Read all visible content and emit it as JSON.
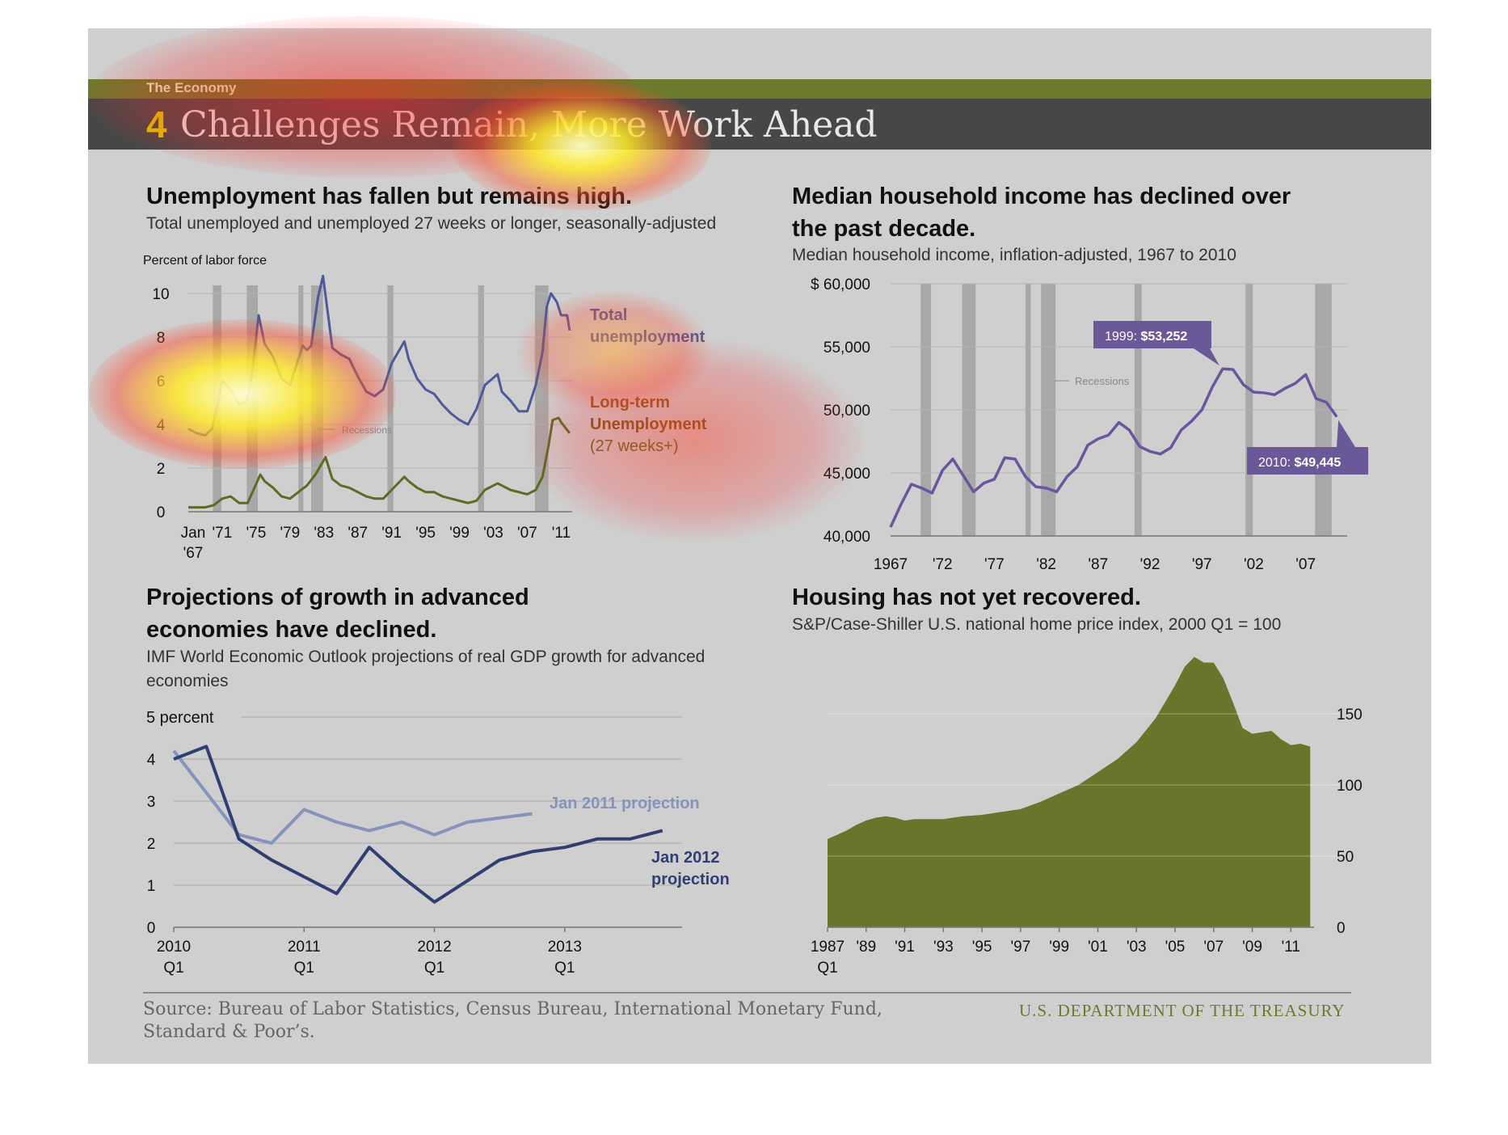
{
  "section_label": "The Economy",
  "title": {
    "number": "4",
    "text": "Challenges Remain, More Work Ahead"
  },
  "panels": {
    "unemployment": {
      "heading": "Unemployment has fallen but remains high.",
      "subtitle": "Total unemployed and unemployed 27 weeks or longer, seasonally-adjusted",
      "ylabel": "Percent of labor force",
      "recessions_label": "Recessions",
      "legend": {
        "total_line1": "Total",
        "total_line2": "unemployment",
        "lt_line1": "Long-term",
        "lt_line2": "Unemployment",
        "lt_line3": "(27 weeks+)"
      }
    },
    "income": {
      "heading_line1": "Median household income has declined over",
      "heading_line2": "the past decade.",
      "subtitle": "Median household income, inflation-adjusted, 1967 to 2010",
      "recessions_label": "Recessions",
      "callout_1999_prefix": "1999: ",
      "callout_1999_value": "$53,252",
      "callout_2010_prefix": "2010: ",
      "callout_2010_value": "$49,445"
    },
    "growth": {
      "heading_line1": "Projections of growth in advanced",
      "heading_line2": "economies have declined.",
      "subtitle_line1": "IMF World Economic Outlook  projections of real GDP growth for advanced",
      "subtitle_line2": "economies",
      "unit_label": "5 percent",
      "legend_2011": "Jan 2011 projection",
      "legend_2012_line1": "Jan 2012",
      "legend_2012_line2": "projection"
    },
    "housing": {
      "heading": "Housing has not yet recovered.",
      "subtitle": "S&P/Case-Shiller U.S. national home price index, 2000 Q1 = 100"
    }
  },
  "footer": {
    "source_line1": "Source: Bureau of Labor Statistics, Census Bureau, International Monetary Fund,",
    "source_line2": "Standard & Poor’s.",
    "agency": "U.S. DEPARTMENT OF THE TREASURY"
  },
  "colors": {
    "total_unemployment": "#4a5a9a",
    "longterm_unemployment": "#5f6b22",
    "income_line": "#6b559e",
    "callout_bg": "#6a5898",
    "jan2011": "#8494bc",
    "jan2012": "#2f3f72",
    "housing_fill": "#67762b",
    "recession_band": "#a8a8a8",
    "title_bar": "#474747",
    "top_bar": "#6b7a2c",
    "title_number": "#e0c700"
  },
  "chart_data": [
    {
      "type": "line",
      "id": "unemployment",
      "title": "Unemployment has fallen but remains high.",
      "ylabel": "Percent of labor force",
      "ylim": [
        0,
        10
      ],
      "yticks": [
        0,
        2,
        4,
        6,
        8,
        10
      ],
      "xlim": [
        1967,
        2012.3
      ],
      "xtick_labels": [
        {
          "x": 1967,
          "line1": "Jan",
          "line2": "'67"
        },
        {
          "x": 1971,
          "line1": "'71"
        },
        {
          "x": 1975,
          "line1": "'75"
        },
        {
          "x": 1979,
          "line1": "'79"
        },
        {
          "x": 1983,
          "line1": "'83"
        },
        {
          "x": 1987,
          "line1": "'87"
        },
        {
          "x": 1991,
          "line1": "'91"
        },
        {
          "x": 1995,
          "line1": "'95"
        },
        {
          "x": 1999,
          "line1": "'99"
        },
        {
          "x": 2003,
          "line1": "'03"
        },
        {
          "x": 2007,
          "line1": "'07"
        },
        {
          "x": 2011,
          "line1": "'11"
        }
      ],
      "recessions": [
        [
          1969.9,
          1970.9
        ],
        [
          1973.9,
          1975.2
        ],
        [
          1980.0,
          1980.5
        ],
        [
          1981.5,
          1982.9
        ],
        [
          1990.5,
          1991.2
        ],
        [
          2001.2,
          2001.9
        ],
        [
          2007.9,
          2009.5
        ]
      ],
      "series": [
        {
          "name": "Total unemployment",
          "x": [
            1967,
            1968,
            1969,
            1969.8,
            1970.5,
            1971,
            1972,
            1973,
            1973.9,
            1974.5,
            1975.3,
            1976,
            1977,
            1978,
            1979,
            1980,
            1980.5,
            1981,
            1981.5,
            1982.3,
            1982.9,
            1983.5,
            1984,
            1985,
            1986,
            1987,
            1988,
            1989,
            1990,
            1991,
            1992.5,
            1993,
            1994,
            1995,
            1996,
            1997,
            1998,
            1999,
            2000,
            2001,
            2002,
            2003.5,
            2004,
            2005,
            2006,
            2007,
            2008,
            2008.8,
            2009.3,
            2009.8,
            2010.5,
            2011,
            2011.7,
            2012
          ],
          "y": [
            3.8,
            3.6,
            3.5,
            3.8,
            5.0,
            6.0,
            5.6,
            4.9,
            5.1,
            6.2,
            9.0,
            7.7,
            7.1,
            6.1,
            5.8,
            7.0,
            7.6,
            7.4,
            7.6,
            9.8,
            10.8,
            9.0,
            7.5,
            7.2,
            7.0,
            6.2,
            5.5,
            5.3,
            5.6,
            6.8,
            7.8,
            7.0,
            6.1,
            5.6,
            5.4,
            4.9,
            4.5,
            4.2,
            4.0,
            4.7,
            5.8,
            6.3,
            5.5,
            5.1,
            4.6,
            4.6,
            5.8,
            7.3,
            9.4,
            10.0,
            9.6,
            9.0,
            9.0,
            8.3
          ]
        },
        {
          "name": "Long-term Unemployment (27 weeks+)",
          "x": [
            1967,
            1968,
            1969,
            1970,
            1971,
            1972,
            1973,
            1974,
            1975.5,
            1976,
            1977,
            1978,
            1979,
            1980,
            1981,
            1982,
            1983.2,
            1984,
            1985,
            1986,
            1987,
            1988,
            1989,
            1990,
            1991,
            1992.5,
            1993,
            1994,
            1995,
            1996,
            1997,
            1998,
            1999,
            2000,
            2001,
            2002,
            2003.5,
            2004,
            2005,
            2006,
            2007,
            2008,
            2008.8,
            2009.5,
            2010,
            2010.7,
            2011,
            2012
          ],
          "y": [
            0.2,
            0.2,
            0.2,
            0.3,
            0.6,
            0.7,
            0.4,
            0.4,
            1.7,
            1.4,
            1.1,
            0.7,
            0.6,
            0.9,
            1.2,
            1.7,
            2.5,
            1.5,
            1.2,
            1.1,
            0.9,
            0.7,
            0.6,
            0.6,
            1.0,
            1.6,
            1.4,
            1.1,
            0.9,
            0.9,
            0.7,
            0.6,
            0.5,
            0.4,
            0.5,
            1.0,
            1.3,
            1.2,
            1.0,
            0.9,
            0.8,
            1.0,
            1.6,
            3.0,
            4.2,
            4.3,
            4.1,
            3.6
          ]
        }
      ]
    },
    {
      "type": "line",
      "id": "income",
      "title": "Median household income has declined over the past decade.",
      "ylim": [
        40000,
        60000
      ],
      "yticks": [
        {
          "v": 40000,
          "label": "40,000"
        },
        {
          "v": 45000,
          "label": "45,000"
        },
        {
          "v": 50000,
          "label": "50,000"
        },
        {
          "v": 55000,
          "label": "55,000"
        },
        {
          "v": 60000,
          "label": "$ 60,000"
        }
      ],
      "xlim": [
        1967,
        2011
      ],
      "xticks": [
        {
          "v": 1967,
          "label": "1967"
        },
        {
          "v": 1972,
          "label": "'72"
        },
        {
          "v": 1977,
          "label": "'77"
        },
        {
          "v": 1982,
          "label": "'82"
        },
        {
          "v": 1987,
          "label": "'87"
        },
        {
          "v": 1992,
          "label": "'92"
        },
        {
          "v": 1997,
          "label": "'97"
        },
        {
          "v": 2002,
          "label": "'02"
        },
        {
          "v": 2007,
          "label": "'07"
        }
      ],
      "recessions": [
        [
          1969.9,
          1970.9
        ],
        [
          1973.9,
          1975.2
        ],
        [
          1980.0,
          1980.5
        ],
        [
          1981.5,
          1982.9
        ],
        [
          1990.5,
          1991.2
        ],
        [
          2001.2,
          2001.9
        ],
        [
          2007.9,
          2009.5
        ]
      ],
      "series": [
        {
          "name": "Median household income",
          "x": [
            1967,
            1968,
            1969,
            1970,
            1971,
            1972,
            1973,
            1974,
            1975,
            1976,
            1977,
            1978,
            1979,
            1980,
            1981,
            1982,
            1983,
            1984,
            1985,
            1986,
            1987,
            1988,
            1989,
            1990,
            1991,
            1992,
            1993,
            1994,
            1995,
            1996,
            1997,
            1998,
            1999,
            2000,
            2001,
            2002,
            2003,
            2004,
            2005,
            2006,
            2007,
            2008,
            2009,
            2010
          ],
          "y": [
            40700,
            42500,
            44100,
            43800,
            43400,
            45200,
            46100,
            44800,
            43500,
            44200,
            44500,
            46200,
            46100,
            44700,
            43900,
            43800,
            43500,
            44700,
            45500,
            47200,
            47700,
            48000,
            49000,
            48400,
            47100,
            46700,
            46500,
            47000,
            48400,
            49100,
            50000,
            51800,
            53252,
            53200,
            52000,
            51400,
            51350,
            51200,
            51700,
            52100,
            52800,
            50900,
            50600,
            49445
          ]
        }
      ],
      "annotations": [
        "1999: $53,252",
        "2010: $49,445"
      ]
    },
    {
      "type": "line",
      "id": "growth",
      "title": "Projections of growth in advanced economies have declined.",
      "ylim": [
        0,
        5
      ],
      "yticks": [
        0,
        1,
        2,
        3,
        4
      ],
      "xlim": [
        2010,
        2013.9
      ],
      "xticks": [
        {
          "v": 2010,
          "line1": "2010",
          "line2": "Q1"
        },
        {
          "v": 2011,
          "line1": "2011",
          "line2": "Q1"
        },
        {
          "v": 2012,
          "line1": "2012",
          "line2": "Q1"
        },
        {
          "v": 2013,
          "line1": "2013",
          "line2": "Q1"
        }
      ],
      "series": [
        {
          "name": "Jan 2011 projection",
          "x": [
            2010,
            2010.25,
            2010.5,
            2010.75,
            2011,
            2011.25,
            2011.5,
            2011.75,
            2012,
            2012.25,
            2012.5,
            2012.75
          ],
          "y": [
            4.2,
            3.2,
            2.2,
            2.0,
            2.8,
            2.5,
            2.3,
            2.5,
            2.2,
            2.5,
            2.6,
            2.7
          ]
        },
        {
          "name": "Jan 2012 projection",
          "x": [
            2010,
            2010.25,
            2010.5,
            2010.75,
            2011,
            2011.25,
            2011.5,
            2011.75,
            2012,
            2012.25,
            2012.5,
            2012.75,
            2013,
            2013.25,
            2013.5,
            2013.75
          ],
          "y": [
            4.0,
            4.3,
            2.1,
            1.6,
            1.2,
            0.8,
            1.9,
            1.2,
            0.6,
            1.1,
            1.6,
            1.8,
            1.9,
            2.1,
            2.1,
            2.3
          ]
        }
      ]
    },
    {
      "type": "area",
      "id": "housing",
      "title": "Housing has not yet recovered.",
      "ylim": [
        0,
        200
      ],
      "yticks": [
        0,
        50,
        100,
        150
      ],
      "xlim": [
        1987,
        2012
      ],
      "xticks": [
        {
          "v": 1987,
          "line1": "1987",
          "line2": "Q1"
        },
        {
          "v": 1989,
          "line1": "'89"
        },
        {
          "v": 1991,
          "line1": "'91"
        },
        {
          "v": 1993,
          "line1": "'93"
        },
        {
          "v": 1995,
          "line1": "'95"
        },
        {
          "v": 1997,
          "line1": "'97"
        },
        {
          "v": 1999,
          "line1": "'99"
        },
        {
          "v": 2001,
          "line1": "'01"
        },
        {
          "v": 2003,
          "line1": "'03"
        },
        {
          "v": 2005,
          "line1": "'05"
        },
        {
          "v": 2007,
          "line1": "'07"
        },
        {
          "v": 2009,
          "line1": "'09"
        },
        {
          "v": 2011,
          "line1": "'11"
        }
      ],
      "series": [
        {
          "name": "Home price index",
          "x": [
            1987,
            1987.5,
            1988,
            1988.5,
            1989,
            1989.5,
            1990,
            1990.5,
            1991,
            1991.5,
            1992,
            1993,
            1994,
            1995,
            1996,
            1997,
            1998,
            1999,
            2000,
            2001,
            2002,
            2003,
            2004,
            2005,
            2005.5,
            2006,
            2006.5,
            2007,
            2007.5,
            2008,
            2008.5,
            2009,
            2009.5,
            2010,
            2010.5,
            2011,
            2011.5,
            2012
          ],
          "y": [
            62,
            65,
            68,
            72,
            75,
            77,
            78,
            77,
            75,
            76,
            76,
            76,
            78,
            79,
            81,
            83,
            88,
            94,
            100,
            109,
            118,
            130,
            147,
            170,
            183,
            190,
            186,
            186,
            175,
            158,
            140,
            136,
            137,
            138,
            132,
            128,
            129,
            127
          ]
        }
      ]
    }
  ]
}
